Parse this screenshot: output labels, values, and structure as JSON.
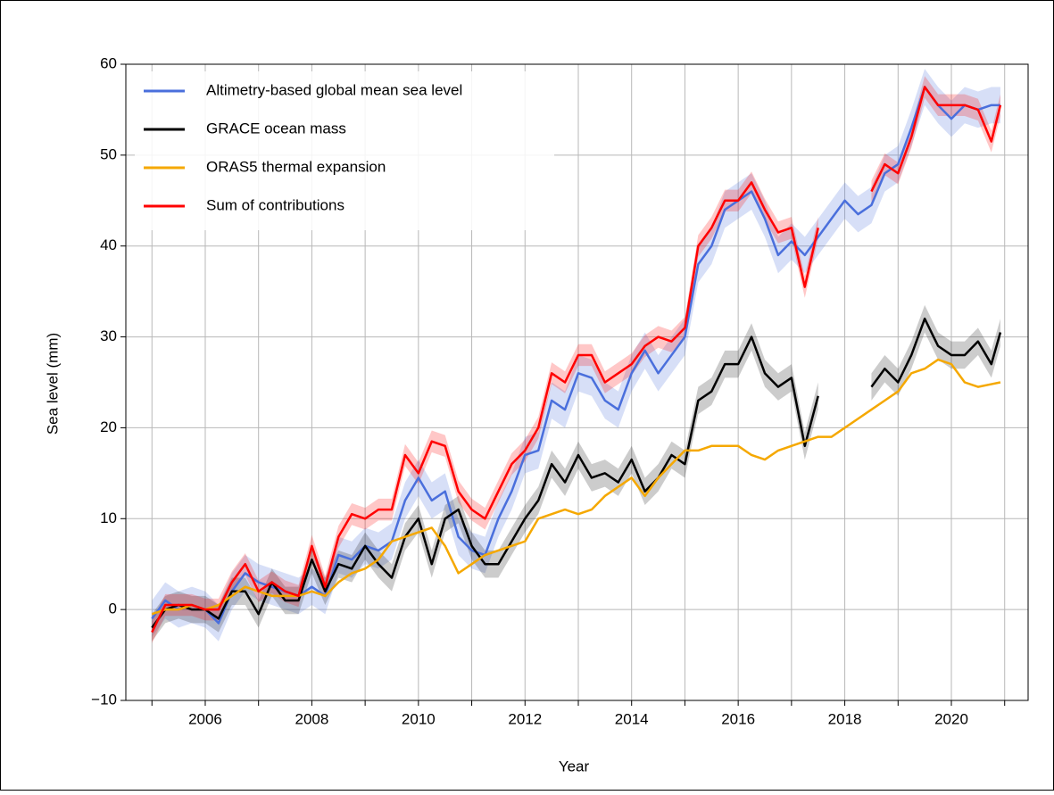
{
  "chart_data": {
    "type": "line",
    "xlabel": "Year",
    "ylabel": "Sea level (mm)",
    "x": [
      2005,
      2005.25,
      2005.5,
      2005.75,
      2006,
      2006.25,
      2006.5,
      2006.75,
      2007,
      2007.25,
      2007.5,
      2007.75,
      2008,
      2008.25,
      2008.5,
      2008.75,
      2009,
      2009.25,
      2009.5,
      2009.75,
      2010,
      2010.25,
      2010.5,
      2010.75,
      2011,
      2011.25,
      2011.5,
      2011.75,
      2012,
      2012.25,
      2012.5,
      2012.75,
      2013,
      2013.25,
      2013.5,
      2013.75,
      2014,
      2014.25,
      2014.5,
      2014.75,
      2015,
      2015.25,
      2015.5,
      2015.75,
      2016,
      2016.25,
      2016.5,
      2016.75,
      2017,
      2017.25,
      2017.5,
      2017.75,
      2018,
      2018.25,
      2018.5,
      2018.75,
      2019,
      2019.25,
      2019.5,
      2019.75,
      2020,
      2020.25,
      2020.5,
      2020.75,
      2020.92
    ],
    "series": [
      {
        "name": "Altimetry-based global mean sea level",
        "color": "#4a6fdc",
        "band": 2,
        "values": [
          -1,
          1,
          0,
          0.5,
          0,
          -1.5,
          2,
          4,
          3,
          2.5,
          2,
          1.5,
          2.5,
          1.5,
          6,
          5.5,
          7,
          6.5,
          7.5,
          12,
          14.5,
          12,
          13,
          8,
          6.5,
          6,
          10,
          13,
          17,
          17.5,
          23,
          22,
          26,
          25.5,
          23,
          22,
          26,
          28.5,
          26,
          28,
          30,
          38,
          40,
          44,
          45,
          46,
          43,
          39,
          40.5,
          39,
          41,
          43,
          45,
          43.5,
          44.5,
          48,
          49,
          53,
          57.5,
          55.5,
          54,
          55.5,
          55,
          55.5,
          55.5
        ]
      },
      {
        "name": "GRACE ocean mass",
        "color": "#000000",
        "band": 1.5,
        "values": [
          -2,
          0,
          0.5,
          0,
          0,
          -1,
          2,
          2,
          -0.5,
          3,
          1,
          1,
          5.5,
          2,
          5,
          4.5,
          7,
          5,
          3.5,
          8,
          10,
          5,
          10,
          11,
          7,
          5,
          5,
          7.5,
          10,
          12,
          16,
          14,
          17,
          14.5,
          15,
          14,
          16.5,
          13,
          14.5,
          17,
          16,
          23,
          24,
          27,
          27,
          30,
          26,
          24.5,
          25.5,
          18,
          23.5,
          null,
          null,
          null,
          24.5,
          26.5,
          25,
          28,
          32,
          29,
          28,
          28,
          29.5,
          27,
          30.5
        ]
      },
      {
        "name": "ORAS5 thermal expansion",
        "color": "#f5a800",
        "values": [
          -0.5,
          0,
          0,
          0.5,
          0,
          0.5,
          1.5,
          2.5,
          2,
          1.5,
          1.5,
          1.5,
          2,
          1.5,
          3,
          4,
          4.5,
          5.5,
          7.5,
          8,
          8.5,
          9,
          7,
          4,
          5,
          6,
          6.5,
          7,
          7.5,
          10,
          10.5,
          11,
          10.5,
          11,
          12.5,
          13.5,
          14.5,
          12.5,
          14.5,
          16,
          17.5,
          17.5,
          18,
          18,
          18,
          17,
          16.5,
          17.5,
          18,
          18.5,
          19,
          19,
          20,
          21,
          22,
          23,
          24,
          26,
          26.5,
          27.5,
          27,
          25,
          24.5,
          24.8,
          25
        ]
      },
      {
        "name": "Sum of contributions",
        "color": "#ff0000",
        "band": 1.2,
        "values": [
          -2.5,
          0.5,
          0.5,
          0.5,
          0,
          0,
          3,
          5,
          2,
          3,
          2,
          1.5,
          7,
          2.5,
          8,
          10.5,
          10,
          11,
          11,
          17,
          15,
          18.5,
          18,
          13,
          11,
          10,
          13,
          16,
          17.5,
          20,
          26,
          25,
          28,
          28,
          25,
          26,
          27,
          29,
          30,
          29.5,
          31,
          40,
          42,
          45,
          45,
          47,
          44,
          41.5,
          42,
          35.5,
          42,
          null,
          null,
          null,
          46,
          49,
          48,
          52,
          57.5,
          55.5,
          55.5,
          55.5,
          55,
          51.5,
          55.5
        ]
      }
    ],
    "xlim": [
      2004.51,
      2021.44
    ],
    "xticks": [
      2006,
      2008,
      2010,
      2012,
      2014,
      2016,
      2018,
      2020
    ],
    "xminorticks": [
      2005,
      2007,
      2009,
      2011,
      2013,
      2015,
      2017,
      2019,
      2021
    ],
    "ylim": [
      -10,
      60
    ],
    "yticks": [
      {
        "value": -10,
        "label": "−10"
      },
      0,
      10,
      20,
      30,
      40,
      50,
      60
    ],
    "grid": true,
    "legend": "upper left"
  }
}
